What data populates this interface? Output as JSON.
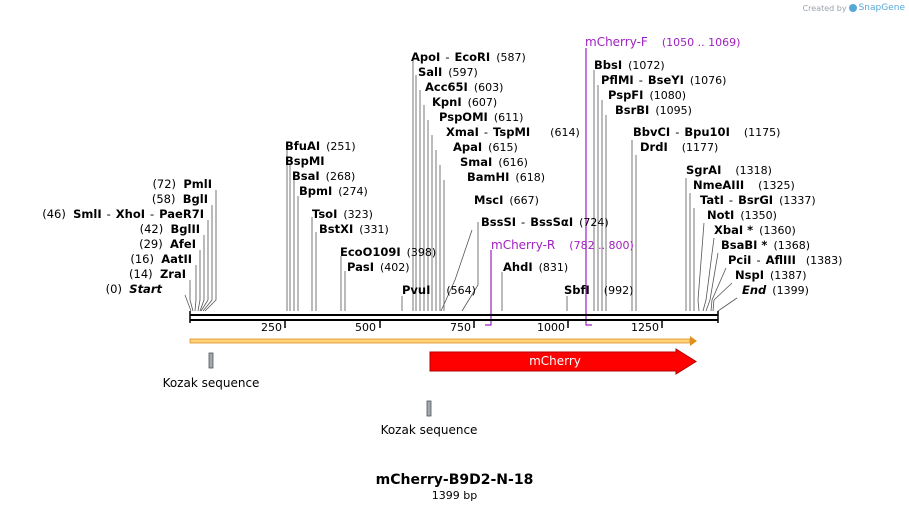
{
  "credit": {
    "prefix": "Created by",
    "brand": "SnapGene"
  },
  "plasmid": {
    "name": "mCherry-B9D2-N-18",
    "size": "1399 bp",
    "length": 1399
  },
  "axis": {
    "ticks": [
      "250",
      "500",
      "750",
      "1000",
      "1250"
    ]
  },
  "sites_left": [
    {
      "pos": "(72)",
      "names": [
        "PmlI"
      ]
    },
    {
      "pos": "(58)",
      "names": [
        "BglI"
      ]
    },
    {
      "pos": "(46)",
      "names": [
        "SmlI",
        "XhoI",
        "PaeR7I"
      ]
    },
    {
      "pos": "(42)",
      "names": [
        "BglII"
      ]
    },
    {
      "pos": "(29)",
      "names": [
        "AfeI"
      ]
    },
    {
      "pos": "(16)",
      "names": [
        "AatII"
      ]
    },
    {
      "pos": "(14)",
      "names": [
        "ZraI"
      ]
    },
    {
      "pos": "(0)",
      "names": [
        "Start"
      ]
    }
  ],
  "sites_middle": [
    {
      "names": [
        "ApoI",
        "EcoRI"
      ],
      "pos": "(587)"
    },
    {
      "names": [
        "SalI"
      ],
      "pos": "(597)"
    },
    {
      "names": [
        "Acc65I"
      ],
      "pos": "(603)"
    },
    {
      "names": [
        "KpnI"
      ],
      "pos": "(607)"
    },
    {
      "names": [
        "PspOMI"
      ],
      "pos": "(611)"
    },
    {
      "names": [
        "XmaI",
        "TspMI"
      ],
      "pos": "(614)"
    },
    {
      "names": [
        "ApaI"
      ],
      "pos": "(615)"
    },
    {
      "names": [
        "SmaI"
      ],
      "pos": "(616)"
    },
    {
      "names": [
        "BamHI"
      ],
      "pos": "(618)"
    },
    {
      "names": [
        "MscI"
      ],
      "pos": "(667)"
    },
    {
      "names": [
        "BssSI",
        "BssSαI"
      ],
      "pos": "(724)"
    },
    {
      "names": [
        "AhdI"
      ],
      "pos": "(831)"
    },
    {
      "names": [
        "PvuI"
      ],
      "pos": "(564)"
    },
    {
      "names": [
        "SbfI"
      ],
      "pos": "(992)"
    }
  ],
  "sites_lower_mid": [
    {
      "names": [
        "BfuAI"
      ],
      "pos": "(251)"
    },
    {
      "names": [
        "BspMI"
      ],
      "pos": ""
    },
    {
      "names": [
        "BsaI"
      ],
      "pos": "(268)"
    },
    {
      "names": [
        "BpmI"
      ],
      "pos": "(274)"
    },
    {
      "names": [
        "TsoI"
      ],
      "pos": "(323)"
    },
    {
      "names": [
        "BstXI"
      ],
      "pos": "(331)"
    },
    {
      "names": [
        "EcoO109I"
      ],
      "pos": "(398)"
    },
    {
      "names": [
        "PasI"
      ],
      "pos": "(402)"
    }
  ],
  "sites_right": [
    {
      "names": [
        "BbsI"
      ],
      "pos": "(1072)"
    },
    {
      "names": [
        "PflMI",
        "BseYI"
      ],
      "pos": "(1076)"
    },
    {
      "names": [
        "PspFI"
      ],
      "pos": "(1080)"
    },
    {
      "names": [
        "BsrBI"
      ],
      "pos": "(1095)"
    },
    {
      "names": [
        "BbvCI",
        "Bpu10I"
      ],
      "pos": "(1175)"
    },
    {
      "names": [
        "DrdI"
      ],
      "pos": "(1177)"
    },
    {
      "names": [
        "SgrAI"
      ],
      "pos": "(1318)"
    },
    {
      "names": [
        "NmeAIII"
      ],
      "pos": "(1325)"
    },
    {
      "names": [
        "TatI",
        "BsrGI"
      ],
      "pos": "(1337)"
    },
    {
      "names": [
        "NotI"
      ],
      "pos": "(1350)"
    },
    {
      "names": [
        "XbaI *"
      ],
      "pos": "(1360)"
    },
    {
      "names": [
        "BsaBI *"
      ],
      "pos": "(1368)"
    },
    {
      "names": [
        "PciI",
        "AflIII"
      ],
      "pos": "(1383)"
    },
    {
      "names": [
        "NspI"
      ],
      "pos": "(1387)"
    },
    {
      "names": [
        "End"
      ],
      "pos": "(1399)"
    }
  ],
  "primers": [
    {
      "name": "mCherry-F",
      "range": "(1050 .. 1069)"
    },
    {
      "name": "mCherry-R",
      "range": "(782 .. 800)"
    }
  ],
  "features": [
    {
      "name": "mCherry",
      "color": "#ff0000"
    },
    {
      "name": "Kozak sequence",
      "color": "#a0a8b0"
    },
    {
      "name": "Kozak sequence",
      "color": "#a0a8b0"
    }
  ],
  "colors": {
    "primer": "#a020c0",
    "orf_fill": "#ffd27a",
    "orf_edge": "#e09020"
  }
}
